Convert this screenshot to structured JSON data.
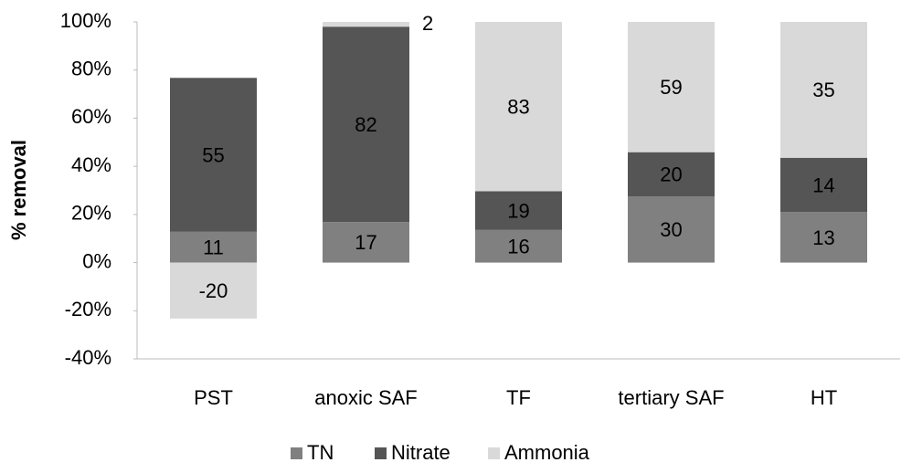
{
  "chart_data": {
    "type": "bar",
    "stack": "percent",
    "ylabel": "% removal",
    "categories": [
      "PST",
      "anoxic SAF",
      "TF",
      "tertiary SAF",
      "HT"
    ],
    "series": [
      {
        "name": "TN",
        "color": "#808080",
        "values": [
          11,
          17,
          16,
          30,
          13
        ]
      },
      {
        "name": "Nitrate",
        "color": "#555555",
        "values": [
          55,
          82,
          19,
          20,
          14
        ]
      },
      {
        "name": "Ammonia",
        "color": "#d9d9d9",
        "values": [
          -20,
          2,
          83,
          59,
          35
        ]
      }
    ],
    "ylim": [
      -40,
      100
    ],
    "yticks": [
      {
        "value": -40,
        "label": "-40%"
      },
      {
        "value": -20,
        "label": "-20%"
      },
      {
        "value": 0,
        "label": "0%"
      },
      {
        "value": 20,
        "label": "20%"
      },
      {
        "value": 40,
        "label": "40%"
      },
      {
        "value": 60,
        "label": "60%"
      },
      {
        "value": 80,
        "label": "80%"
      },
      {
        "value": 100,
        "label": "100%"
      }
    ],
    "legend": "bottom"
  }
}
